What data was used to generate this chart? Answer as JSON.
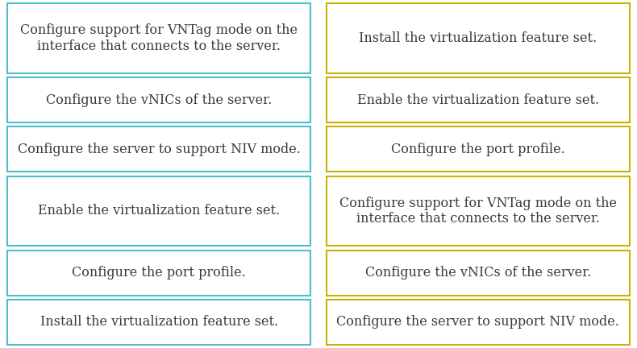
{
  "left_column": [
    "Configure support for VNTag mode on the\ninterface that connects to the server.",
    "Configure the vNICs of the server.",
    "Configure the server to support NIV mode.",
    "Enable the virtualization feature set.",
    "Configure the port profile.",
    "Install the virtualization feature set."
  ],
  "right_column": [
    "Install the virtualization feature set.",
    "Enable the virtualization feature set.",
    "Configure the port profile.",
    "Configure support for VNTag mode on the\ninterface that connects to the server.",
    "Configure the vNICs of the server.",
    "Configure the server to support NIV mode."
  ],
  "left_border_color": "#4DBECC",
  "right_border_color": "#C8B400",
  "background_color": "#FFFFFF",
  "text_color": "#3A3A3A",
  "font_size": 11.5,
  "fig_width": 7.9,
  "fig_height": 4.32,
  "dpi": 100
}
